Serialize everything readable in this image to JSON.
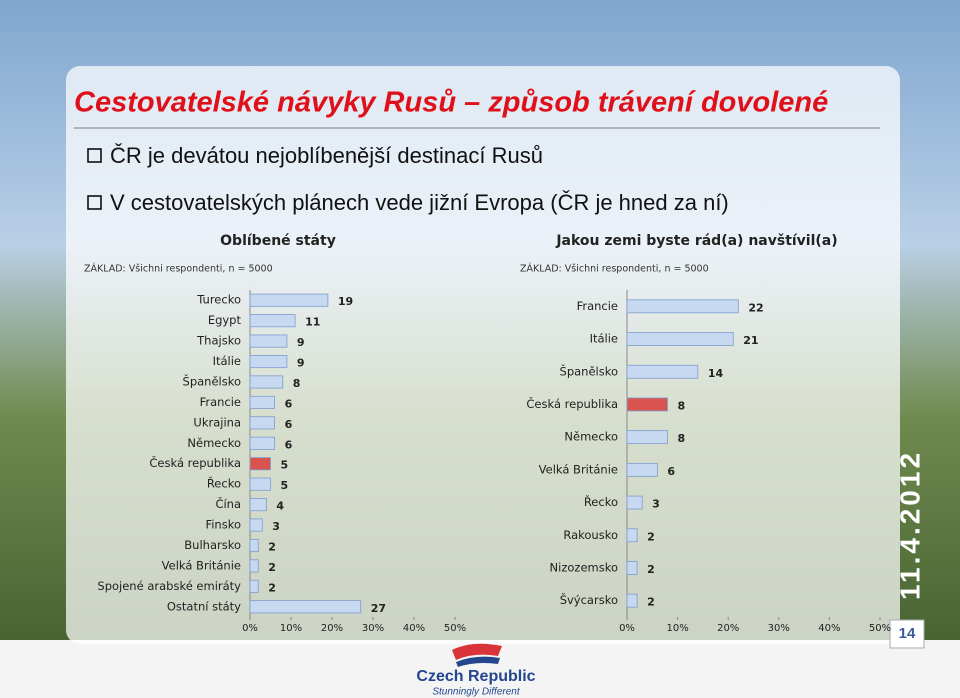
{
  "slide": {
    "title": "Cestovatelské návyky Rusů – způsob trávení dovolené",
    "bullets": [
      "ČR je devátou nejoblíbenější destinací Rusů",
      "V cestovatelských plánech vede jižní Evropa (ČR je hned za ní)"
    ],
    "date": "11.4.2012",
    "page": "14",
    "logo": "Czech Republic",
    "slogan": "Stunningly Different"
  },
  "chart_data": [
    {
      "type": "bar",
      "horizontal": true,
      "title": "Oblíbené státy",
      "subtitle": "ZÁKLAD: Všichni respondenti, n = 5000",
      "categories": [
        "Turecko",
        "Egypt",
        "Thajsko",
        "Itálie",
        "Španělsko",
        "Francie",
        "Ukrajina",
        "Německo",
        "Česká republika",
        "Řecko",
        "Čína",
        "Finsko",
        "Bulharsko",
        "Velká Británie",
        "Spojené arabské emiráty",
        "Ostatní státy"
      ],
      "values": [
        19,
        11,
        9,
        9,
        8,
        6,
        6,
        6,
        5,
        5,
        4,
        3,
        2,
        2,
        2,
        27
      ],
      "colors": [
        "#c6d9f1",
        "#c6d9f1",
        "#c6d9f1",
        "#c6d9f1",
        "#c6d9f1",
        "#c6d9f1",
        "#c6d9f1",
        "#c6d9f1",
        "#d9534f",
        "#c6d9f1",
        "#c6d9f1",
        "#c6d9f1",
        "#c6d9f1",
        "#c6d9f1",
        "#c6d9f1",
        "#c6d9f1"
      ],
      "xlim": [
        0,
        50
      ],
      "xticks": [
        {
          "value": 0,
          "label": "0%"
        },
        {
          "value": 10,
          "label": "10%"
        },
        {
          "value": 20,
          "label": "20%"
        },
        {
          "value": 30,
          "label": "30%"
        },
        {
          "value": 40,
          "label": "40%"
        },
        {
          "value": 50,
          "label": "50%"
        }
      ]
    },
    {
      "type": "bar",
      "horizontal": true,
      "title": "Jakou zemi byste rád(a) navštívil(a)",
      "subtitle": "ZÁKLAD: Všichni respondenti, n = 5000",
      "categories": [
        "Francie",
        "Itálie",
        "Španělsko",
        "Česká republika",
        "Německo",
        "Velká Británie",
        "Řecko",
        "Rakousko",
        "Nizozemsko",
        "Švýcarsko"
      ],
      "values": [
        22,
        21,
        14,
        8,
        8,
        6,
        3,
        2,
        2,
        2
      ],
      "colors": [
        "#c6d9f1",
        "#c6d9f1",
        "#c6d9f1",
        "#d9534f",
        "#c6d9f1",
        "#c6d9f1",
        "#c6d9f1",
        "#c6d9f1",
        "#c6d9f1",
        "#c6d9f1"
      ],
      "xlim": [
        0,
        50
      ],
      "xticks": [
        {
          "value": 0,
          "label": "0%"
        },
        {
          "value": 10,
          "label": "10%"
        },
        {
          "value": 20,
          "label": "20%"
        },
        {
          "value": 30,
          "label": "30%"
        },
        {
          "value": 40,
          "label": "40%"
        },
        {
          "value": 50,
          "label": "50%"
        }
      ]
    }
  ]
}
